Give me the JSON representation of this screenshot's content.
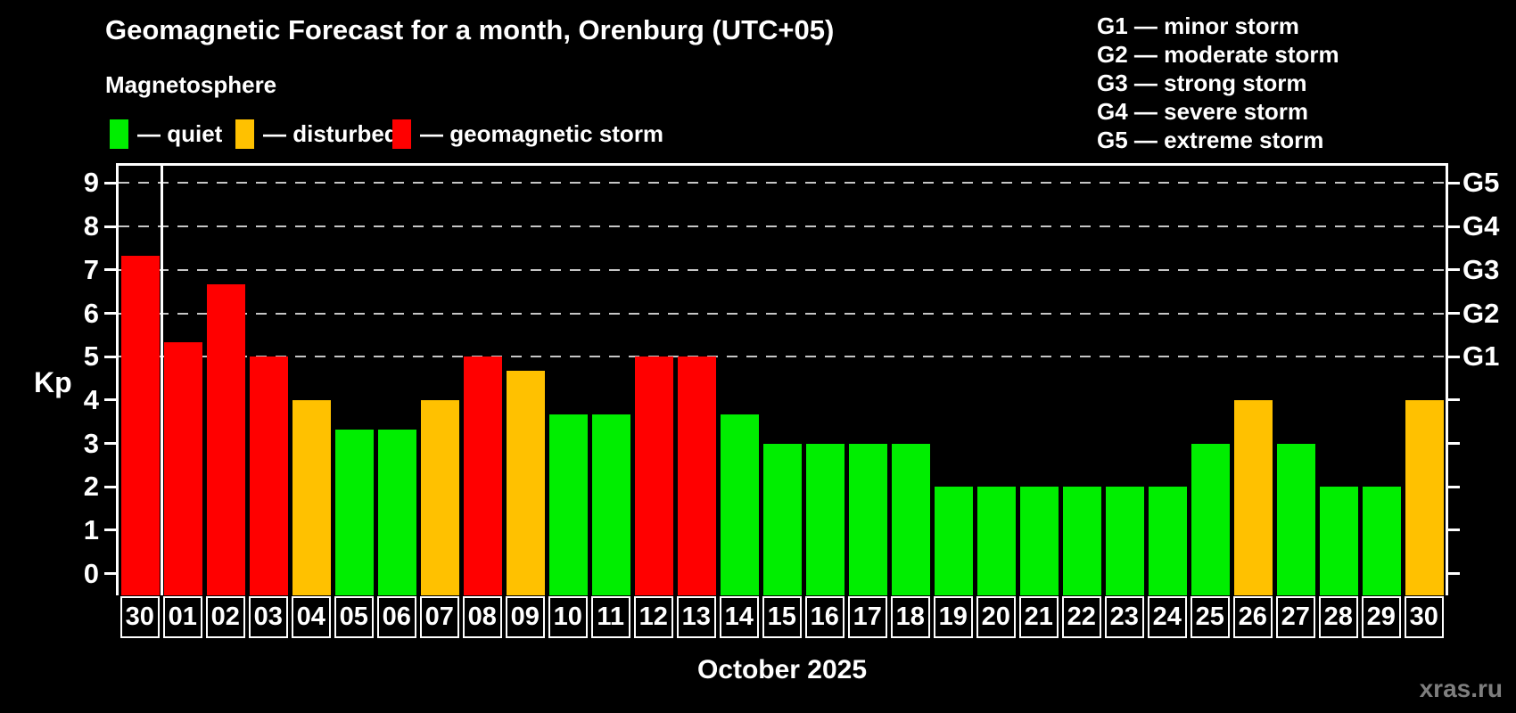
{
  "title": "Geomagnetic Forecast for a month, Orenburg (UTC+05)",
  "subtitle": "Magnetosphere",
  "watermark": "xras.ru",
  "series_legend": [
    {
      "key": "quiet",
      "label": "— quiet",
      "color": "#00ee00"
    },
    {
      "key": "disturbed",
      "label": "— disturbed",
      "color": "#ffc100"
    },
    {
      "key": "storm",
      "label": "— geomagnetic storm",
      "color": "#ff0000"
    }
  ],
  "storm_scale_legend": [
    "G1 — minor storm",
    "G2 — moderate storm",
    "G3 — strong storm",
    "G4 — severe storm",
    "G5 — extreme storm"
  ],
  "chart_data": {
    "type": "bar",
    "title": "Geomagnetic Forecast for a month, Orenburg (UTC+05)",
    "xlabel": "October 2025",
    "ylabel": "Kp",
    "ylim": [
      -0.5,
      9.4
    ],
    "yticks": [
      0,
      1,
      2,
      3,
      4,
      5,
      6,
      7,
      8,
      9
    ],
    "gridlines_at": [
      5,
      6,
      7,
      8,
      9
    ],
    "grid": "dashed",
    "legend_position": "top",
    "right_axis_labels": [
      {
        "kp": 5,
        "label": "G1"
      },
      {
        "kp": 6,
        "label": "G2"
      },
      {
        "kp": 7,
        "label": "G3"
      },
      {
        "kp": 8,
        "label": "G4"
      },
      {
        "kp": 9,
        "label": "G5"
      }
    ],
    "status_colors": {
      "quiet": "#00ee00",
      "disturbed": "#ffc100",
      "storm": "#ff0000"
    },
    "categories": [
      "30",
      "01",
      "02",
      "03",
      "04",
      "05",
      "06",
      "07",
      "08",
      "09",
      "10",
      "11",
      "12",
      "13",
      "14",
      "15",
      "16",
      "17",
      "18",
      "19",
      "20",
      "21",
      "22",
      "23",
      "24",
      "25",
      "26",
      "27",
      "28",
      "29",
      "30"
    ],
    "values": [
      7.33,
      5.33,
      6.67,
      5,
      4,
      3.33,
      3.33,
      4,
      5,
      4.67,
      3.67,
      3.67,
      5,
      5,
      3.67,
      3,
      3,
      3,
      3,
      2,
      2,
      2,
      2,
      2,
      2,
      3,
      4,
      3,
      2,
      2,
      4
    ],
    "statuses": [
      "storm",
      "storm",
      "storm",
      "storm",
      "disturbed",
      "quiet",
      "quiet",
      "disturbed",
      "storm",
      "disturbed",
      "quiet",
      "quiet",
      "storm",
      "storm",
      "quiet",
      "quiet",
      "quiet",
      "quiet",
      "quiet",
      "quiet",
      "quiet",
      "quiet",
      "quiet",
      "quiet",
      "quiet",
      "quiet",
      "disturbed",
      "quiet",
      "quiet",
      "quiet",
      "disturbed"
    ],
    "month_separator_after_index": 0
  }
}
